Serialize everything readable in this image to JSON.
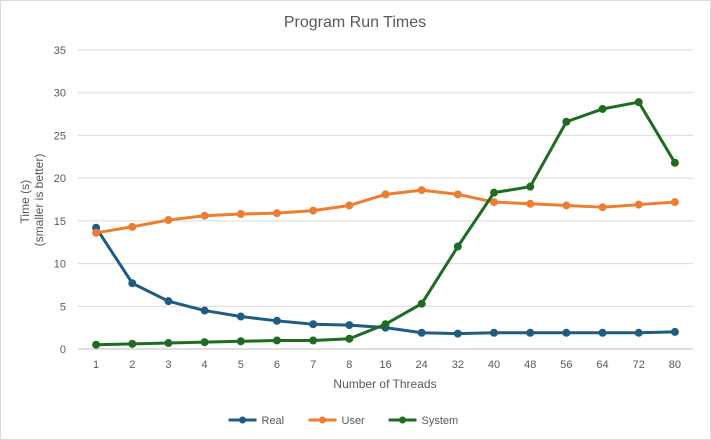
{
  "chart_data": {
    "type": "line",
    "title": "Program Run Times",
    "xlabel": "Number of Threads",
    "ylabel_line1": "Time (s)",
    "ylabel_line2": "(smaller is better)",
    "ylim": [
      0,
      35
    ],
    "yticks": [
      "0",
      "5",
      "10",
      "15",
      "20",
      "25",
      "30",
      "35"
    ],
    "grid": true,
    "legend_position": "bottom",
    "categories": [
      "1",
      "2",
      "3",
      "4",
      "5",
      "6",
      "7",
      "8",
      "16",
      "24",
      "32",
      "40",
      "48",
      "56",
      "64",
      "72",
      "80"
    ],
    "series": [
      {
        "name": "Real",
        "color": "#1f5c82",
        "values": [
          14.2,
          7.7,
          5.6,
          4.5,
          3.8,
          3.3,
          2.9,
          2.8,
          2.5,
          1.9,
          1.8,
          1.9,
          1.9,
          1.9,
          1.9,
          1.9,
          2.0
        ]
      },
      {
        "name": "User",
        "color": "#ed7d31",
        "values": [
          13.6,
          14.3,
          15.1,
          15.6,
          15.8,
          15.9,
          16.2,
          16.8,
          18.1,
          18.6,
          18.1,
          17.2,
          17.0,
          16.8,
          16.6,
          16.9,
          17.2
        ]
      },
      {
        "name": "System",
        "color": "#1e6b22",
        "values": [
          0.5,
          0.6,
          0.7,
          0.8,
          0.9,
          1.0,
          1.0,
          1.2,
          2.9,
          5.3,
          12.0,
          18.3,
          19.0,
          26.6,
          28.1,
          28.9,
          21.8
        ]
      }
    ]
  }
}
